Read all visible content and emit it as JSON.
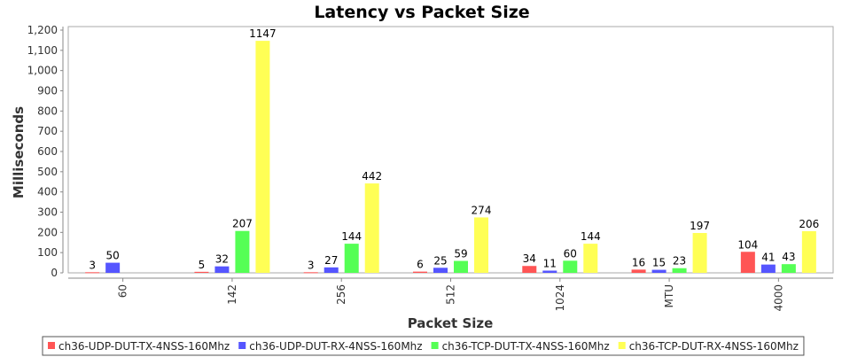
{
  "chart_data": {
    "type": "bar",
    "title": "Latency vs Packet Size",
    "xlabel": "Packet Size",
    "ylabel": "Milliseconds",
    "categories": [
      "60",
      "142",
      "256",
      "512",
      "1024",
      "MTU",
      "4000"
    ],
    "ylim": [
      0,
      1200
    ],
    "yticks": [
      0,
      100,
      200,
      300,
      400,
      500,
      600,
      700,
      800,
      900,
      1000,
      1100,
      1200
    ],
    "ytick_labels": [
      "0",
      "100",
      "200",
      "300",
      "400",
      "500",
      "600",
      "700",
      "800",
      "900",
      "1,000",
      "1,100",
      "1,200"
    ],
    "grid": false,
    "legend_position": "bottom",
    "series": [
      {
        "name": "ch36-UDP-DUT-TX-4NSS-160Mhz",
        "color": "#ff5555",
        "values": [
          3,
          5,
          3,
          6,
          34,
          16,
          104
        ]
      },
      {
        "name": "ch36-UDP-DUT-RX-4NSS-160Mhz",
        "color": "#5555ff",
        "values": [
          50,
          32,
          27,
          25,
          11,
          15,
          41
        ]
      },
      {
        "name": "ch36-TCP-DUT-TX-4NSS-160Mhz",
        "color": "#55ff55",
        "values": [
          null,
          207,
          144,
          59,
          60,
          23,
          43
        ]
      },
      {
        "name": "ch36-TCP-DUT-RX-4NSS-160Mhz",
        "color": "#ffff55",
        "values": [
          null,
          1147,
          442,
          274,
          144,
          197,
          206
        ]
      }
    ]
  }
}
